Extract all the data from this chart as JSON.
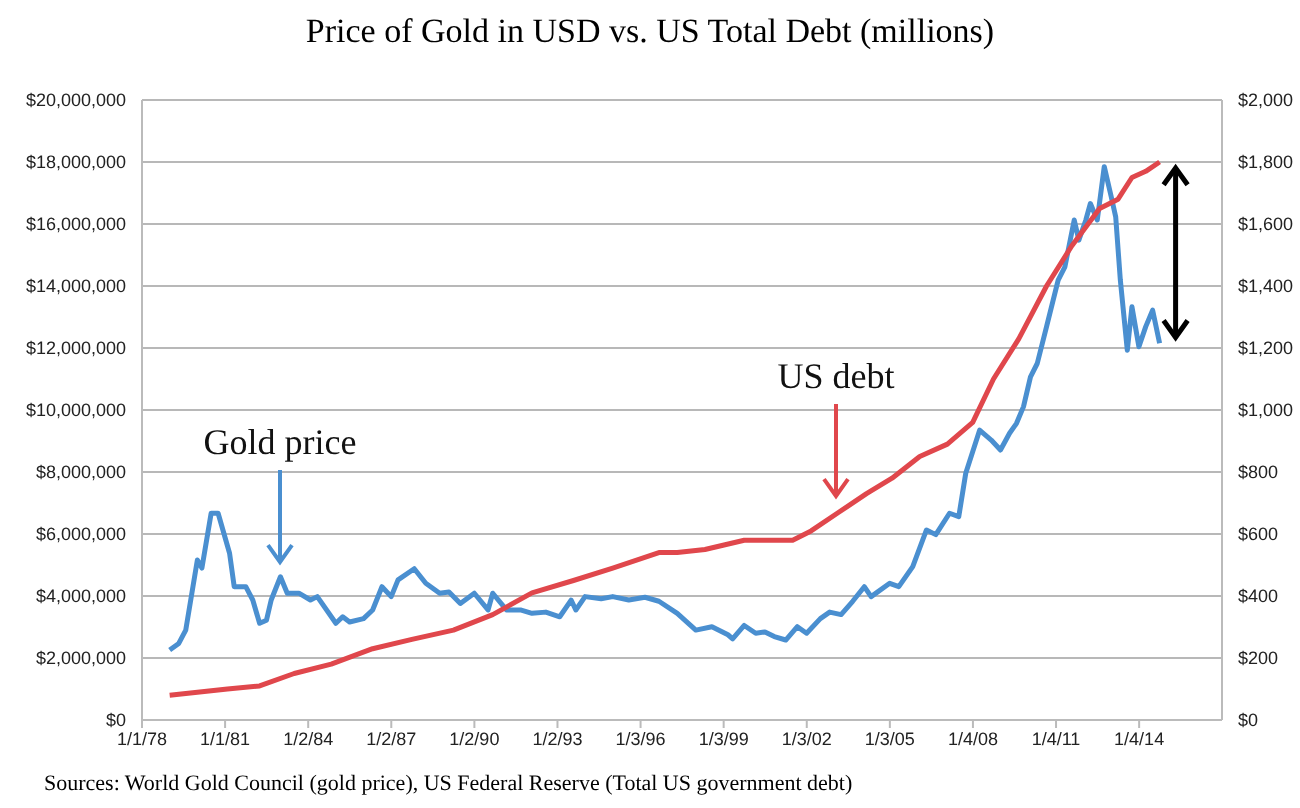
{
  "chart_data": {
    "type": "line",
    "title": "Price of Gold in USD vs. US Total Debt (millions)",
    "xlim": [
      "1978-01-01",
      "2017-01-01"
    ],
    "xticks": [
      {
        "value": "1978-01-01",
        "label": "1/1/78"
      },
      {
        "value": "1981-01-01",
        "label": "1/1/81"
      },
      {
        "value": "1984-01-02",
        "label": "1/2/84"
      },
      {
        "value": "1987-01-02",
        "label": "1/2/87"
      },
      {
        "value": "1990-01-02",
        "label": "1/2/90"
      },
      {
        "value": "1993-01-02",
        "label": "1/2/93"
      },
      {
        "value": "1996-01-03",
        "label": "1/3/96"
      },
      {
        "value": "1999-01-03",
        "label": "1/3/99"
      },
      {
        "value": "2002-01-03",
        "label": "1/3/02"
      },
      {
        "value": "2005-01-03",
        "label": "1/3/05"
      },
      {
        "value": "2008-01-04",
        "label": "1/4/08"
      },
      {
        "value": "2011-01-04",
        "label": "1/4/11"
      },
      {
        "value": "2014-01-04",
        "label": "1/4/14"
      }
    ],
    "ylim": [
      0,
      20000000
    ],
    "yticks": [
      {
        "value": 0,
        "label": "$0"
      },
      {
        "value": 2000000,
        "label": "$2,000,000"
      },
      {
        "value": 4000000,
        "label": "$4,000,000"
      },
      {
        "value": 6000000,
        "label": "$6,000,000"
      },
      {
        "value": 8000000,
        "label": "$8,000,000"
      },
      {
        "value": 10000000,
        "label": "$10,000,000"
      },
      {
        "value": 12000000,
        "label": "$12,000,000"
      },
      {
        "value": 14000000,
        "label": "$14,000,000"
      },
      {
        "value": 16000000,
        "label": "$16,000,000"
      },
      {
        "value": 18000000,
        "label": "$18,000,000"
      },
      {
        "value": 20000000,
        "label": "$20,000,000"
      }
    ],
    "y2lim": [
      0,
      2000
    ],
    "y2ticks": [
      {
        "value": 0,
        "label": "$0"
      },
      {
        "value": 200,
        "label": "$200"
      },
      {
        "value": 400,
        "label": "$400"
      },
      {
        "value": 600,
        "label": "$600"
      },
      {
        "value": 800,
        "label": "$800"
      },
      {
        "value": 1000,
        "label": "$1,000"
      },
      {
        "value": 1200,
        "label": "$1,200"
      },
      {
        "value": 1400,
        "label": "$1,400"
      },
      {
        "value": 1600,
        "label": "$1,600"
      },
      {
        "value": 1800,
        "label": "$1,800"
      },
      {
        "value": 2000,
        "label": "$2,000"
      }
    ],
    "grid": "y",
    "legend": false,
    "marker": "none",
    "line_style": "solid",
    "series": [
      {
        "color": "#4a8fd0",
        "axis": "y2",
        "x": [
          "1979-01",
          "1979-05",
          "1979-08",
          "1980-01",
          "1980-03",
          "1980-07",
          "1980-10",
          "1981-03",
          "1981-05",
          "1981-10",
          "1982-01",
          "1982-04",
          "1982-07",
          "1982-09",
          "1983-01",
          "1983-04",
          "1983-09",
          "1984-02",
          "1984-05",
          "1985-01",
          "1985-04",
          "1985-07",
          "1986-01",
          "1986-05",
          "1986-09",
          "1987-01",
          "1987-04",
          "1987-11",
          "1988-04",
          "1988-10",
          "1989-02",
          "1989-07",
          "1990-01",
          "1990-07",
          "1990-09",
          "1991-03",
          "1991-09",
          "1992-02",
          "1992-08",
          "1993-02",
          "1993-07",
          "1993-09",
          "1994-01",
          "1994-08",
          "1995-01",
          "1995-08",
          "1996-03",
          "1996-09",
          "1997-05",
          "1998-01",
          "1998-08",
          "1999-03",
          "1999-05",
          "1999-10",
          "2000-03",
          "2000-07",
          "2000-11",
          "2001-04",
          "2001-09",
          "2002-01",
          "2002-07",
          "2002-11",
          "2003-04",
          "2003-09",
          "2004-02",
          "2004-05",
          "2005-01",
          "2005-05",
          "2005-11",
          "2006-05",
          "2006-09",
          "2007-03",
          "2007-07",
          "2007-10",
          "2008-04",
          "2008-09",
          "2009-01",
          "2009-05",
          "2009-08",
          "2009-11",
          "2010-02",
          "2010-05",
          "2010-09",
          "2011-02",
          "2011-05",
          "2011-09",
          "2011-11",
          "2012-02",
          "2012-04",
          "2012-07",
          "2012-10",
          "2013-01",
          "2013-03",
          "2013-05",
          "2013-08",
          "2013-10",
          "2014-01",
          "2014-04",
          "2014-07",
          "2014-10"
        ],
        "values": [
          226,
          247,
          290,
          516,
          490,
          667,
          667,
          538,
          430,
          430,
          387,
          312,
          322,
          387,
          462,
          409,
          409,
          387,
          398,
          312,
          333,
          316,
          327,
          355,
          430,
          398,
          452,
          488,
          441,
          409,
          413,
          376,
          409,
          355,
          409,
          355,
          355,
          344,
          348,
          333,
          387,
          355,
          398,
          391,
          398,
          387,
          396,
          383,
          344,
          290,
          301,
          275,
          262,
          305,
          280,
          284,
          269,
          258,
          301,
          280,
          327,
          348,
          340,
          383,
          430,
          398,
          441,
          430,
          495,
          613,
          598,
          667,
          656,
          796,
          935,
          903,
          871,
          925,
          957,
          1011,
          1107,
          1150,
          1269,
          1419,
          1462,
          1613,
          1548,
          1613,
          1666,
          1613,
          1785,
          1688,
          1623,
          1419,
          1193,
          1333,
          1204,
          1269,
          1322,
          1215
        ]
      },
      {
        "color": "#e0474c",
        "x": [
          "1979-01",
          "1981-02",
          "1982-04",
          "1983-07",
          "1984-11",
          "1986-05",
          "1987-10",
          "1989-04",
          "1990-09",
          "1992-02",
          "1993-08",
          "1995-01",
          "1996-09",
          "1997-05",
          "1998-05",
          "1999-10",
          "2000-07",
          "2001-07",
          "2002-03",
          "2003-03",
          "2004-03",
          "2005-02",
          "2006-02",
          "2007-02",
          "2008-01",
          "2008-10",
          "2009-09",
          "2010-09",
          "2011-08",
          "2012-08",
          "2013-04",
          "2013-10",
          "2014-04",
          "2014-10"
        ],
        "values": [
          800000,
          1000000,
          1100000,
          1500000,
          1800000,
          2300000,
          2600000,
          2900000,
          3400000,
          4100000,
          4500000,
          4900000,
          5400000,
          5400000,
          5500000,
          5800000,
          5800000,
          5800000,
          6100000,
          6700000,
          7300000,
          7800000,
          8500000,
          8900000,
          9600000,
          11000000,
          12300000,
          14000000,
          15300000,
          16500000,
          16800000,
          17500000,
          17700000,
          18000000
        ]
      }
    ],
    "annotations": [
      "Gold price",
      "US debt",
      "Sources: World Gold Council (gold price), US Federal Reserve (Total US government debt)"
    ]
  }
}
